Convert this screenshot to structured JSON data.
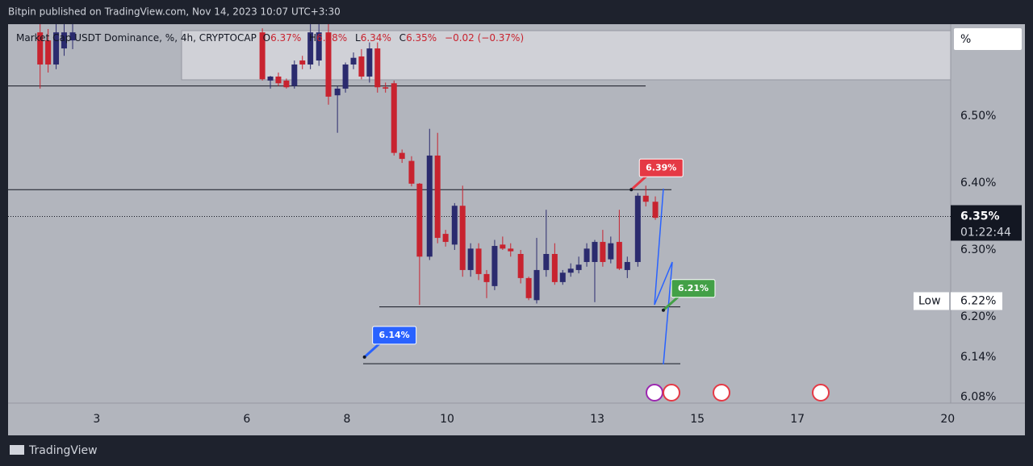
{
  "header": "Bitpin published on TradingView.com, Nov 14, 2023 10:07 UTC+3:30",
  "footer": "TradingView",
  "chart_data": {
    "type": "candlestick",
    "legend": {
      "symbol": "Market Cap USDT Dominance, %, 4h, CRYPTOCAP",
      "o_label": "O",
      "open": "6.37%",
      "h_label": "H",
      "high": "6.38%",
      "l_label": "L",
      "low": "6.34%",
      "c_label": "C",
      "close": "6.35%",
      "change": "−0.02 (−0.37%)"
    },
    "scale_label": "%",
    "up_color": "#2b2b6e",
    "down_color": "#c8232f",
    "xlim": [
      1.23,
      20.06
    ],
    "ylim": [
      6.07,
      6.63
    ],
    "xticks": [
      3,
      6,
      8,
      10,
      13,
      15,
      17,
      20
    ],
    "yticks": [
      {
        "value": 6.5,
        "label": "6.50%"
      },
      {
        "value": 6.4,
        "label": "6.40%"
      },
      {
        "value": 6.3,
        "label": "6.30%"
      },
      {
        "value": 6.2,
        "label": "6.20%"
      },
      {
        "value": 6.14,
        "label": "6.14%"
      },
      {
        "value": 6.08,
        "label": "6.08%"
      }
    ],
    "candles": {
      "x": [
        1.87,
        2.03,
        2.19,
        2.35,
        2.52,
        6.31,
        6.47,
        6.63,
        6.79,
        6.95,
        7.11,
        7.27,
        7.44,
        7.63,
        7.81,
        7.97,
        8.13,
        8.29,
        8.45,
        8.61,
        8.77,
        8.94,
        9.1,
        9.29,
        9.45,
        9.65,
        9.81,
        9.97,
        10.15,
        10.31,
        10.47,
        10.63,
        10.79,
        10.95,
        11.11,
        11.27,
        11.47,
        11.63,
        11.79,
        11.98,
        12.15,
        12.31,
        12.47,
        12.63,
        12.79,
        12.95,
        13.11,
        13.27,
        13.44,
        13.6,
        13.81,
        13.97,
        14.16
      ],
      "open": [
        6.625,
        6.613,
        6.577,
        6.601,
        6.613,
        6.625,
        6.553,
        6.559,
        6.553,
        6.545,
        6.583,
        6.577,
        6.583,
        6.625,
        6.531,
        6.541,
        6.577,
        6.589,
        6.559,
        6.601,
        6.543,
        6.549,
        6.445,
        6.433,
        6.399,
        6.29,
        6.441,
        6.324,
        6.308,
        6.366,
        6.27,
        6.302,
        6.264,
        6.246,
        6.308,
        6.302,
        6.294,
        6.258,
        6.225,
        6.27,
        6.294,
        6.252,
        6.266,
        6.27,
        6.282,
        6.282,
        6.312,
        6.286,
        6.312,
        6.27,
        6.282,
        6.381,
        6.372
      ],
      "high": [
        6.64,
        6.63,
        6.64,
        6.64,
        6.64,
        6.631,
        6.56,
        6.565,
        6.556,
        6.583,
        6.59,
        6.64,
        6.64,
        6.64,
        6.545,
        6.58,
        6.595,
        6.6,
        6.61,
        6.61,
        6.55,
        6.553,
        6.45,
        6.44,
        6.4,
        6.481,
        6.475,
        6.33,
        6.37,
        6.396,
        6.31,
        6.31,
        6.27,
        6.315,
        6.32,
        6.31,
        6.3,
        6.26,
        6.318,
        6.36,
        6.31,
        6.27,
        6.28,
        6.29,
        6.31,
        6.315,
        6.33,
        6.32,
        6.36,
        6.29,
        6.385,
        6.396,
        6.38
      ],
      "low": [
        6.541,
        6.565,
        6.57,
        6.59,
        6.6,
        6.553,
        6.541,
        6.545,
        6.541,
        6.541,
        6.57,
        6.57,
        6.575,
        6.517,
        6.475,
        6.535,
        6.57,
        6.555,
        6.55,
        6.535,
        6.535,
        6.441,
        6.43,
        6.395,
        6.218,
        6.285,
        6.31,
        6.305,
        6.3,
        6.26,
        6.26,
        6.255,
        6.228,
        6.24,
        6.3,
        6.29,
        6.25,
        6.225,
        6.22,
        6.26,
        6.248,
        6.248,
        6.26,
        6.265,
        6.275,
        6.222,
        6.275,
        6.28,
        6.27,
        6.258,
        6.275,
        6.365,
        6.345
      ],
      "close": [
        6.577,
        6.577,
        6.625,
        6.625,
        6.625,
        6.555,
        6.559,
        6.549,
        6.543,
        6.577,
        6.577,
        6.625,
        6.625,
        6.529,
        6.541,
        6.577,
        6.587,
        6.559,
        6.601,
        6.543,
        6.541,
        6.445,
        6.436,
        6.399,
        6.29,
        6.441,
        6.318,
        6.312,
        6.366,
        6.27,
        6.302,
        6.264,
        6.252,
        6.306,
        6.302,
        6.298,
        6.258,
        6.228,
        6.27,
        6.294,
        6.252,
        6.266,
        6.272,
        6.278,
        6.302,
        6.312,
        6.282,
        6.31,
        6.272,
        6.282,
        6.381,
        6.372,
        6.348
      ]
    },
    "hlines": [
      6.545,
      6.39,
      6.215,
      6.13
    ],
    "last_price": {
      "value": 6.35,
      "label": "6.35%",
      "countdown": "01:22:44"
    },
    "low_marker": {
      "name": "Low",
      "value": 6.22,
      "label": "6.22%"
    },
    "callouts": [
      {
        "x": 13.68,
        "value": 6.39,
        "label": "6.39%",
        "color": "#e53945"
      },
      {
        "x": 14.32,
        "value": 6.21,
        "label": "6.21%",
        "color": "#43a047"
      },
      {
        "x": 8.35,
        "value": 6.14,
        "label": "6.14%",
        "color": "#2962ff"
      }
    ]
  }
}
